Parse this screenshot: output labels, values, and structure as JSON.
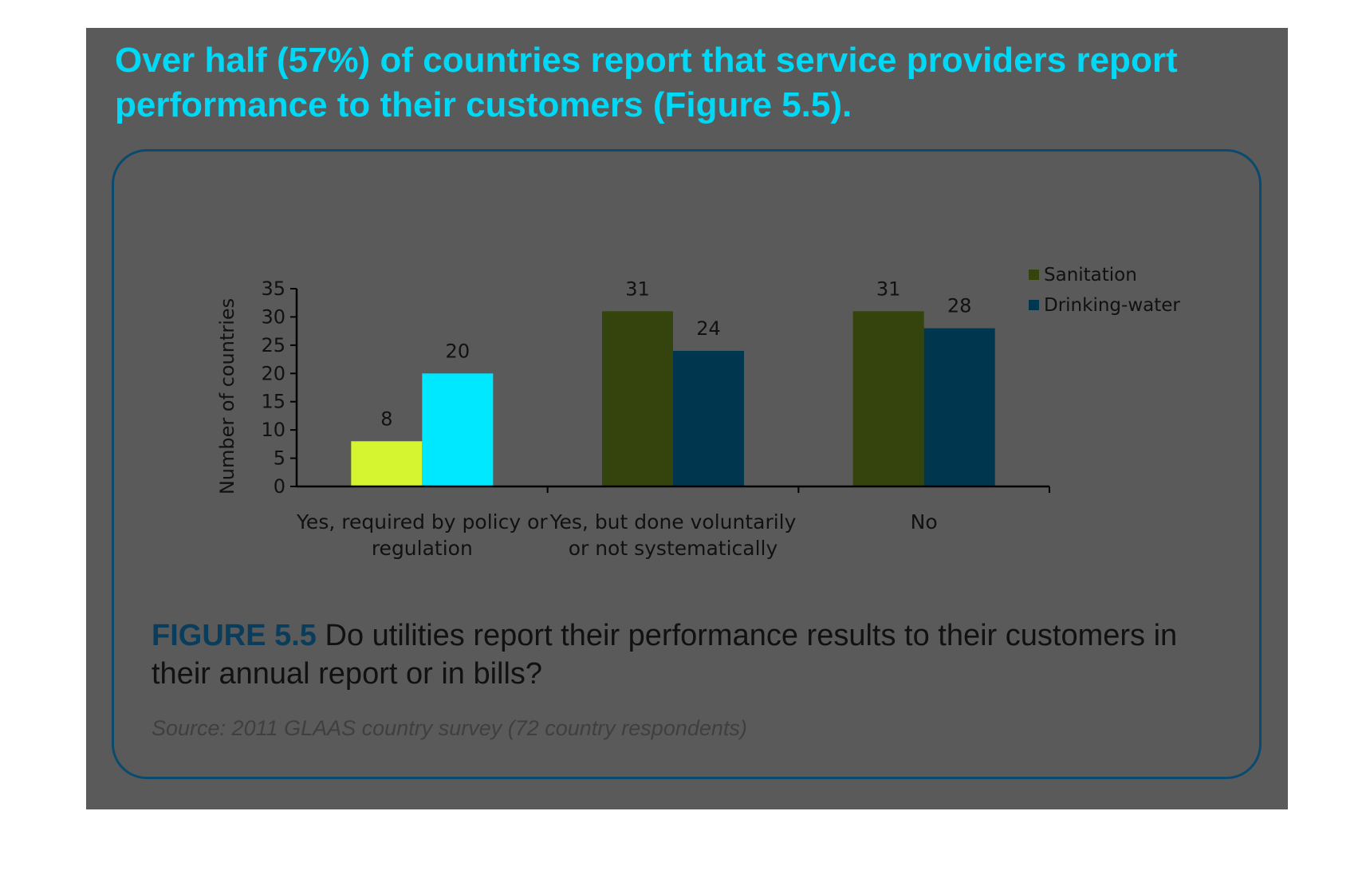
{
  "headline": "Over half (57%) of countries report that service providers report performance to their customers (Figure 5.5).",
  "caption": {
    "figure_label": "FIGURE 5.5",
    "text": " Do utilities report their performance results to their customers in their annual report or in bills?"
  },
  "source": "Source: 2011 GLAAS country survey (72 country respondents)",
  "colors": {
    "background": "#5a5a5a",
    "headline": "#00d8f5",
    "panel_border": "#0a4a6e",
    "sanitation": "#34440c",
    "drinking_water": "#00374f",
    "highlight_sanitation": "#d6f531",
    "highlight_water": "#00e8ff"
  },
  "chart_data": {
    "type": "bar",
    "ylabel": "Number of countries",
    "ylim": [
      0,
      35
    ],
    "yticks": [
      0,
      5,
      10,
      15,
      20,
      25,
      30,
      35
    ],
    "categories": [
      [
        "Yes, required by policy or",
        "regulation"
      ],
      [
        "Yes, but done voluntarily",
        "or not systematically"
      ],
      [
        "No"
      ]
    ],
    "series": [
      {
        "name": "Sanitation",
        "values": [
          8,
          31,
          31
        ]
      },
      {
        "name": "Drinking-water",
        "values": [
          20,
          24,
          28
        ]
      }
    ],
    "legend_position": "top-right"
  }
}
